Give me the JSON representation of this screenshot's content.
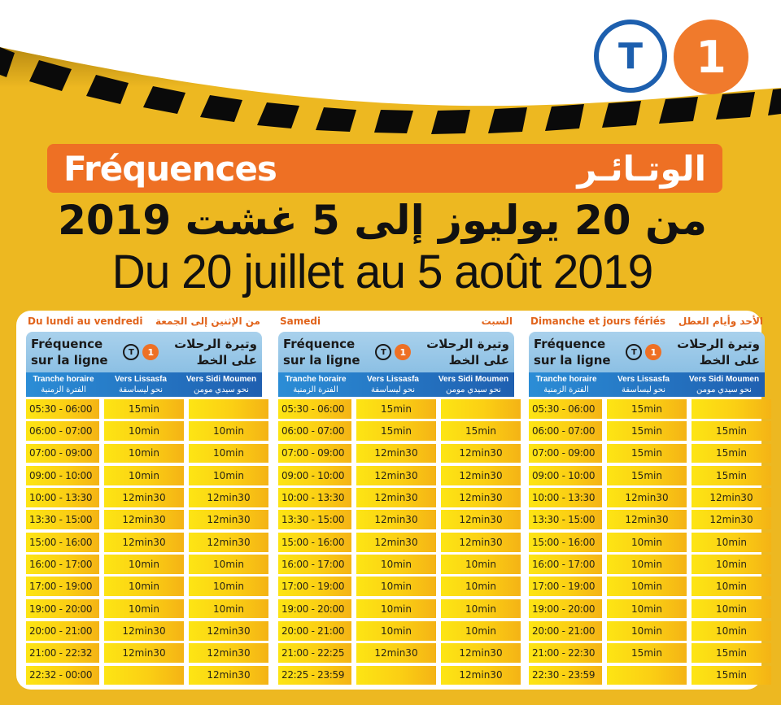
{
  "header": {
    "logo": {
      "letter": "T",
      "number": "1",
      "t_color": "#1d5fae",
      "one_color": "#f07a2c"
    },
    "banner": {
      "fr": "Fréquences",
      "ar": "الوتـائـر",
      "color": "#ee7024"
    },
    "title_ar": "من 20 يوليوز إلى 5 غشت 2019",
    "title_fr": "Du 20 juillet au 5 août 2019"
  },
  "common": {
    "band_fr_line1": "Fréquence",
    "band_fr_line2": "sur la ligne",
    "band_ar_line1": "وتيرة الرحلات",
    "band_ar_line2": "على الخط",
    "logo_t": "T",
    "logo_1": "1",
    "columns": [
      {
        "fr": "Tranche horaire",
        "ar": "الفترة الزمنية"
      },
      {
        "fr": "Vers Lissasfa",
        "ar": "نحو ليساسفة"
      },
      {
        "fr": "Vers Sidi Moumen",
        "ar": "نحو سيدي مومن"
      }
    ]
  },
  "tables": [
    {
      "day_fr": "Du lundi au vendredi",
      "day_ar": "من الإثنين إلى الجمعة",
      "rows": [
        {
          "time": "05:30 - 06:00",
          "lissasfa": "15min",
          "sidi_moumen": ""
        },
        {
          "time": "06:00 - 07:00",
          "lissasfa": "10min",
          "sidi_moumen": "10min"
        },
        {
          "time": "07:00 - 09:00",
          "lissasfa": "10min",
          "sidi_moumen": "10min"
        },
        {
          "time": "09:00 - 10:00",
          "lissasfa": "10min",
          "sidi_moumen": "10min"
        },
        {
          "time": "10:00 - 13:30",
          "lissasfa": "12min30",
          "sidi_moumen": "12min30"
        },
        {
          "time": "13:30 - 15:00",
          "lissasfa": "12min30",
          "sidi_moumen": "12min30"
        },
        {
          "time": "15:00 - 16:00",
          "lissasfa": "12min30",
          "sidi_moumen": "12min30"
        },
        {
          "time": "16:00 - 17:00",
          "lissasfa": "10min",
          "sidi_moumen": "10min"
        },
        {
          "time": "17:00 - 19:00",
          "lissasfa": "10min",
          "sidi_moumen": "10min"
        },
        {
          "time": "19:00 - 20:00",
          "lissasfa": "10min",
          "sidi_moumen": "10min"
        },
        {
          "time": "20:00 - 21:00",
          "lissasfa": "12min30",
          "sidi_moumen": "12min30"
        },
        {
          "time": "21:00 - 22:32",
          "lissasfa": "12min30",
          "sidi_moumen": "12min30"
        },
        {
          "time": "22:32 - 00:00",
          "lissasfa": "",
          "sidi_moumen": "12min30"
        }
      ]
    },
    {
      "day_fr": "Samedi",
      "day_ar": "السبت",
      "rows": [
        {
          "time": "05:30 - 06:00",
          "lissasfa": "15min",
          "sidi_moumen": ""
        },
        {
          "time": "06:00 - 07:00",
          "lissasfa": "15min",
          "sidi_moumen": "15min"
        },
        {
          "time": "07:00 - 09:00",
          "lissasfa": "12min30",
          "sidi_moumen": "12min30"
        },
        {
          "time": "09:00 - 10:00",
          "lissasfa": "12min30",
          "sidi_moumen": "12min30"
        },
        {
          "time": "10:00 - 13:30",
          "lissasfa": "12min30",
          "sidi_moumen": "12min30"
        },
        {
          "time": "13:30 - 15:00",
          "lissasfa": "12min30",
          "sidi_moumen": "12min30"
        },
        {
          "time": "15:00 - 16:00",
          "lissasfa": "12min30",
          "sidi_moumen": "12min30"
        },
        {
          "time": "16:00 - 17:00",
          "lissasfa": "10min",
          "sidi_moumen": "10min"
        },
        {
          "time": "17:00 - 19:00",
          "lissasfa": "10min",
          "sidi_moumen": "10min"
        },
        {
          "time": "19:00 - 20:00",
          "lissasfa": "10min",
          "sidi_moumen": "10min"
        },
        {
          "time": "20:00 - 21:00",
          "lissasfa": "10min",
          "sidi_moumen": "10min"
        },
        {
          "time": "21:00 - 22:25",
          "lissasfa": "12min30",
          "sidi_moumen": "12min30"
        },
        {
          "time": "22:25 - 23:59",
          "lissasfa": "",
          "sidi_moumen": "12min30"
        }
      ]
    },
    {
      "day_fr": "Dimanche et jours fériés",
      "day_ar": "الأحد وأيام العطل",
      "rows": [
        {
          "time": "05:30 - 06:00",
          "lissasfa": "15min",
          "sidi_moumen": ""
        },
        {
          "time": "06:00 - 07:00",
          "lissasfa": "15min",
          "sidi_moumen": "15min"
        },
        {
          "time": "07:00 - 09:00",
          "lissasfa": "15min",
          "sidi_moumen": "15min"
        },
        {
          "time": "09:00 - 10:00",
          "lissasfa": "15min",
          "sidi_moumen": "15min"
        },
        {
          "time": "10:00 - 13:30",
          "lissasfa": "12min30",
          "sidi_moumen": "12min30"
        },
        {
          "time": "13:30 - 15:00",
          "lissasfa": "12min30",
          "sidi_moumen": "12min30"
        },
        {
          "time": "15:00 - 16:00",
          "lissasfa": "10min",
          "sidi_moumen": "10min"
        },
        {
          "time": "16:00 - 17:00",
          "lissasfa": "10min",
          "sidi_moumen": "10min"
        },
        {
          "time": "17:00 - 19:00",
          "lissasfa": "10min",
          "sidi_moumen": "10min"
        },
        {
          "time": "19:00 - 20:00",
          "lissasfa": "10min",
          "sidi_moumen": "10min"
        },
        {
          "time": "20:00 - 21:00",
          "lissasfa": "10min",
          "sidi_moumen": "10min"
        },
        {
          "time": "21:00 - 22:30",
          "lissasfa": "15min",
          "sidi_moumen": "15min"
        },
        {
          "time": "22:30 - 23:59",
          "lissasfa": "",
          "sidi_moumen": "15min"
        }
      ]
    }
  ]
}
